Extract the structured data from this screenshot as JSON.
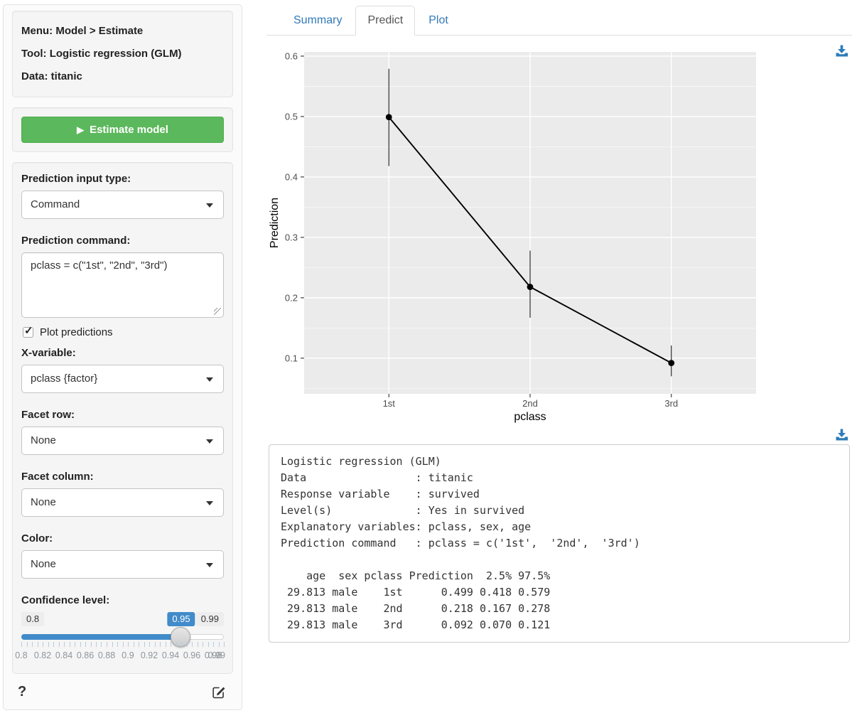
{
  "sidebar": {
    "model_info": {
      "menu": "Menu: Model > Estimate",
      "tool": "Tool: Logistic regression (GLM)",
      "data": "Data: titanic"
    },
    "estimate": {
      "label": "Estimate model",
      "play_icon": "▶"
    },
    "fields": {
      "input_type": {
        "label": "Prediction input type:",
        "value": "Command"
      },
      "command": {
        "label": "Prediction command:",
        "value": "pclass = c(\"1st\", \"2nd\", \"3rd\")"
      },
      "plot_predictions": {
        "label": "Plot predictions",
        "checked": true
      },
      "x_variable": {
        "label": "X-variable:",
        "value": "pclass {factor}"
      },
      "facet_row": {
        "label": "Facet row:",
        "value": "None"
      },
      "facet_column": {
        "label": "Facet column:",
        "value": "None"
      },
      "color": {
        "label": "Color:",
        "value": "None"
      },
      "confidence": {
        "label": "Confidence level:",
        "min": 0.8,
        "max": 0.99,
        "value": 0.95,
        "min_label": "0.8",
        "value_label": "0.95",
        "max_label": "0.99",
        "tick_labels": [
          "0.8",
          "0.82",
          "0.84",
          "0.86",
          "0.88",
          "0.9",
          "0.92",
          "0.94",
          "0.96",
          "0.98",
          "0.99"
        ]
      }
    },
    "help_label": "?"
  },
  "icons": {
    "check_glyph": "✓"
  },
  "tabs": [
    {
      "label": "Summary",
      "active": false
    },
    {
      "label": "Predict",
      "active": true
    },
    {
      "label": "Plot",
      "active": false
    }
  ],
  "chart_data": {
    "type": "line",
    "title": "",
    "xlabel": "pclass",
    "ylabel": "Prediction",
    "categories": [
      "1st",
      "2nd",
      "3rd"
    ],
    "series": [
      {
        "name": "Prediction",
        "values": [
          0.499,
          0.218,
          0.092
        ],
        "ci_low": [
          0.418,
          0.167,
          0.07
        ],
        "ci_high": [
          0.579,
          0.278,
          0.121
        ]
      }
    ],
    "ylim": [
      0.041,
      0.607
    ],
    "yticks": [
      0.1,
      0.2,
      0.3,
      0.4,
      0.5,
      0.6
    ],
    "grid": true,
    "legend": "none",
    "panel_bg": "#ebebeb",
    "gridline_color": "#ffffff",
    "point_color": "#000000",
    "axis_text_color": "#4d4d4d"
  },
  "output": {
    "lines": [
      "Logistic regression (GLM)",
      "Data                 : titanic",
      "Response variable    : survived",
      "Level(s)             : Yes in survived",
      "Explanatory variables: pclass, sex, age",
      "Prediction command   : pclass = c('1st',  '2nd',  '3rd')",
      "",
      "    age  sex pclass Prediction  2.5% 97.5%",
      " 29.813 male    1st      0.499 0.418 0.579",
      " 29.813 male    2nd      0.218 0.167 0.278",
      " 29.813 male    3rd      0.092 0.070 0.121"
    ]
  },
  "colors": {
    "link_blue": "#337ab7",
    "slider_blue": "#428bca",
    "button_green": "#5cb85c",
    "button_green_border": "#4cae4c",
    "download_blue": "#2e7cb8",
    "well_bg": "#f5f5f5",
    "panel_gray": "#ebebeb"
  }
}
